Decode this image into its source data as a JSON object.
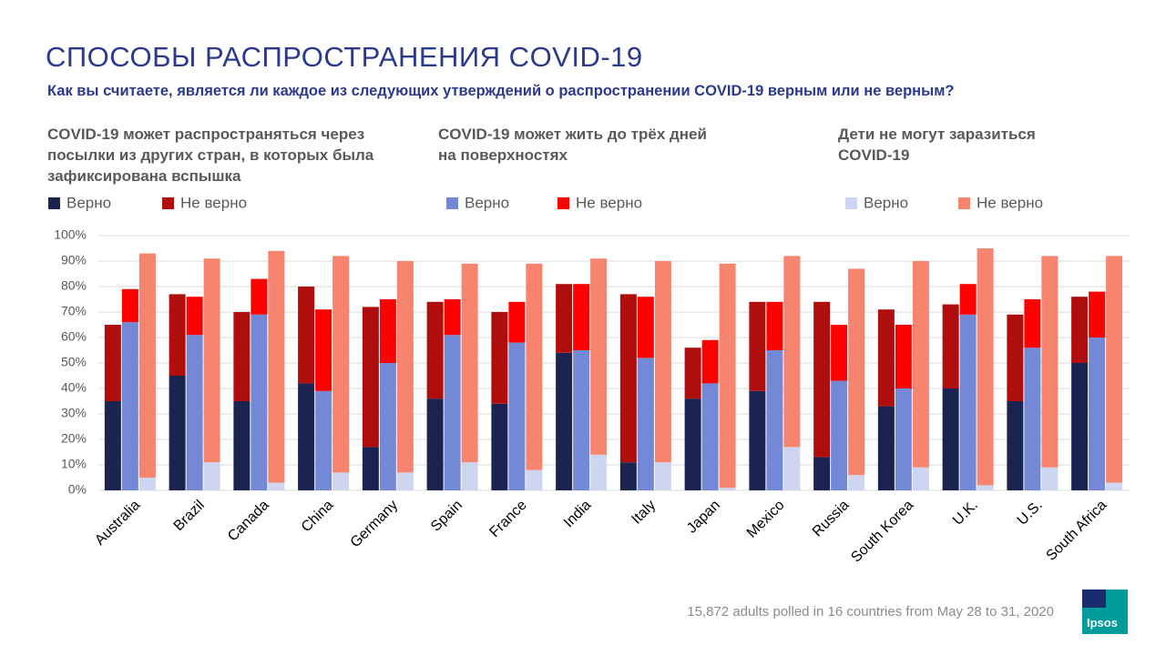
{
  "chart_data": {
    "type": "grouped-stacked-bar",
    "title": "СПОСОБЫ РАСПРОСТРАНЕНИЯ COVID-19",
    "subtitle": "Как вы считаете, является ли каждое из следующих утверждений о распространении COVID-19 верным или не верным?",
    "footnote": "15,872 adults polled in 16 countries from May 28 to 31, 2020",
    "logo": "Ipsos",
    "categories": [
      "Australia",
      "Brazil",
      "Canada",
      "China",
      "Germany",
      "Spain",
      "France",
      "India",
      "Italy",
      "Japan",
      "Mexico",
      "Russia",
      "South Korea",
      "U.K.",
      "U.S.",
      "South Africa"
    ],
    "ylim": [
      0,
      100
    ],
    "yticks": [
      {
        "value": 0,
        "label": "0%"
      },
      {
        "value": 10,
        "label": "10%"
      },
      {
        "value": 20,
        "label": "20%"
      },
      {
        "value": 30,
        "label": "30%"
      },
      {
        "value": 40,
        "label": "40%"
      },
      {
        "value": 50,
        "label": "50%"
      },
      {
        "value": 60,
        "label": "60%"
      },
      {
        "value": 70,
        "label": "70%"
      },
      {
        "value": 80,
        "label": "80%"
      },
      {
        "value": 90,
        "label": "90%"
      },
      {
        "value": 100,
        "label": "100%"
      }
    ],
    "grid": true,
    "groups": [
      {
        "title": "COVID-19 может распространяться через посылки из других стран, в которых была зафиксирована вспышка",
        "series": [
          {
            "name": "Верно",
            "color": "#1b2350",
            "values": [
              35,
              45,
              35,
              42,
              17,
              36,
              34,
              54,
              11,
              36,
              39,
              13,
              33,
              40,
              35,
              50
            ]
          },
          {
            "name": "Не верно",
            "color": "#b00d0d",
            "values": [
              30,
              32,
              35,
              38,
              55,
              38,
              36,
              27,
              66,
              20,
              35,
              61,
              38,
              33,
              34,
              26
            ]
          }
        ]
      },
      {
        "title": "COVID-19 может жить до трёх дней на поверхностях",
        "series": [
          {
            "name": "Верно",
            "color": "#7489d5",
            "values": [
              66,
              61,
              69,
              39,
              50,
              61,
              58,
              55,
              52,
              42,
              55,
              43,
              40,
              69,
              56,
              60
            ]
          },
          {
            "name": "Не верно",
            "color": "#ff0000",
            "values": [
              13,
              15,
              14,
              32,
              25,
              14,
              16,
              26,
              24,
              17,
              19,
              22,
              25,
              12,
              19,
              18
            ]
          }
        ]
      },
      {
        "title": "Дети не могут заразиться COVID-19",
        "series": [
          {
            "name": "Верно",
            "color": "#cdd5f0",
            "values": [
              5,
              11,
              3,
              7,
              7,
              11,
              8,
              14,
              11,
              1,
              17,
              6,
              9,
              2,
              9,
              3
            ]
          },
          {
            "name": "Не верно",
            "color": "#f7846f",
            "values": [
              88,
              80,
              91,
              85,
              83,
              78,
              81,
              77,
              79,
              88,
              75,
              81,
              81,
              93,
              83,
              89
            ]
          }
        ]
      }
    ]
  }
}
